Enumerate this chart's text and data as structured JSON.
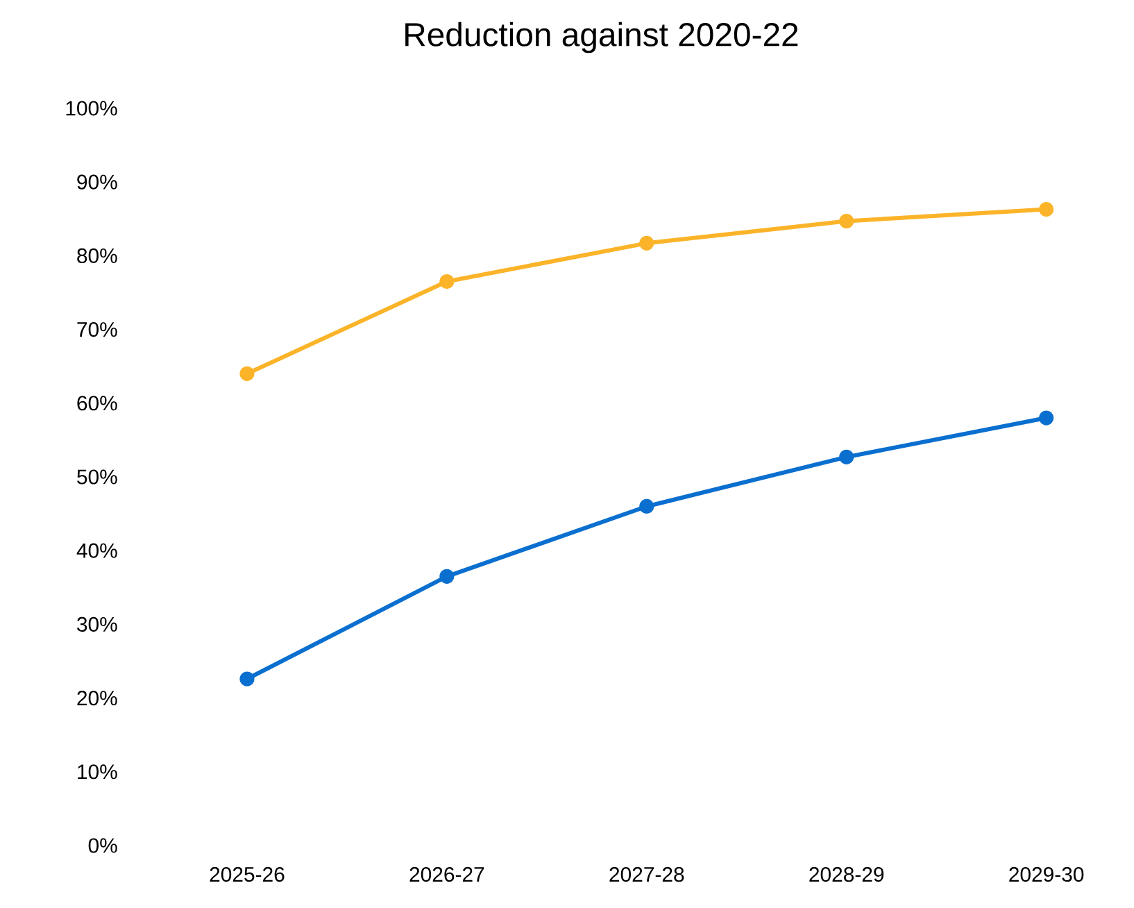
{
  "chart_data": {
    "type": "line",
    "title": "Reduction against 2020-22",
    "categories": [
      "2025-26",
      "2026-27",
      "2027-28",
      "2028-29",
      "2029-30"
    ],
    "series": [
      {
        "color": "#fbb429",
        "values": [
          64.0,
          76.5,
          81.7,
          84.7,
          86.3
        ]
      },
      {
        "color": "#0a6fcf",
        "values": [
          22.6,
          36.5,
          46.0,
          52.7,
          58.0
        ]
      }
    ],
    "ylim": [
      0,
      100
    ],
    "yticks": [
      {
        "value": 0,
        "label": "0%"
      },
      {
        "value": 10,
        "label": "10%"
      },
      {
        "value": 20,
        "label": "20%"
      },
      {
        "value": 30,
        "label": "30%"
      },
      {
        "value": 40,
        "label": "40%"
      },
      {
        "value": 50,
        "label": "50%"
      },
      {
        "value": 60,
        "label": "60%"
      },
      {
        "value": 70,
        "label": "70%"
      },
      {
        "value": 80,
        "label": "80%"
      },
      {
        "value": 90,
        "label": "90%"
      },
      {
        "value": 100,
        "label": "100%"
      }
    ],
    "grid": false,
    "marker": "circle",
    "line_style": "solid"
  }
}
